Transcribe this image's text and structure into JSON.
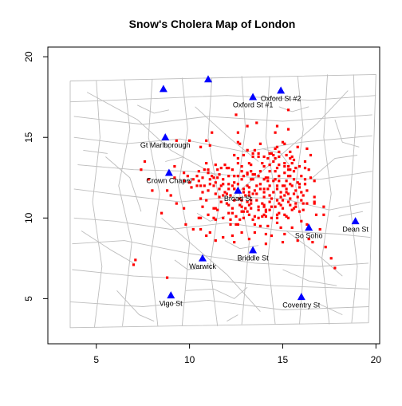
{
  "chart_data": {
    "type": "scatter",
    "title": "Snow's Cholera Map of London",
    "xlabel": "",
    "ylabel": "",
    "xlim": [
      2.4,
      20.2
    ],
    "ylim": [
      2.2,
      20.6
    ],
    "xticks": [
      5,
      10,
      15,
      20
    ],
    "yticks": [
      5,
      10,
      15,
      20
    ],
    "grid": false,
    "colors": {
      "streets": "#bdbdbd",
      "deaths": "#ff0000",
      "pumps": "#0000ff",
      "frame": "#000000"
    },
    "pumps": [
      {
        "label": "Oxford St #1",
        "x": 13.4,
        "y": 17.5
      },
      {
        "label": "Oxford St #2",
        "x": 14.9,
        "y": 17.9
      },
      {
        "label": "Gt Marlborough",
        "x": 8.7,
        "y": 15.0
      },
      {
        "label": "Crown Chapel",
        "x": 8.9,
        "y": 12.8
      },
      {
        "label": "Broad St",
        "x": 12.6,
        "y": 11.7
      },
      {
        "label": "So Soho",
        "x": 16.4,
        "y": 9.4
      },
      {
        "label": "Dean St",
        "x": 18.9,
        "y": 9.8
      },
      {
        "label": "Briddle St",
        "x": 13.4,
        "y": 8.0
      },
      {
        "label": "Warwick",
        "x": 10.7,
        "y": 7.5
      },
      {
        "label": "Vigo St",
        "x": 9.0,
        "y": 5.2
      },
      {
        "label": "Coventry St",
        "x": 16.0,
        "y": 5.1
      },
      {
        "label": "",
        "x": 8.6,
        "y": 18.0
      },
      {
        "label": "",
        "x": 11.0,
        "y": 18.6
      }
    ],
    "deaths": [
      [
        13.6,
        11.1
      ],
      [
        9.9,
        12.6
      ],
      [
        14.7,
        10.2
      ],
      [
        15.2,
        10.1
      ],
      [
        13.7,
        10.7
      ],
      [
        15.3,
        10.0
      ],
      [
        15.0,
        12.0
      ],
      [
        12.6,
        12.1
      ],
      [
        14.9,
        10.8
      ],
      [
        14.2,
        12.5
      ],
      [
        13.1,
        12.8
      ],
      [
        12.7,
        14.6
      ],
      [
        11.8,
        10.0
      ],
      [
        14.6,
        10.7
      ],
      [
        12.7,
        9.9
      ],
      [
        10.8,
        13.0
      ],
      [
        15.4,
        12.1
      ],
      [
        13.8,
        11.8
      ],
      [
        14.0,
        10.2
      ],
      [
        14.9,
        11.3
      ],
      [
        13.5,
        12.7
      ],
      [
        15.0,
        14.7
      ],
      [
        15.3,
        13.2
      ],
      [
        15.6,
        10.6
      ],
      [
        11.8,
        12.1
      ],
      [
        14.6,
        13.7
      ],
      [
        15.4,
        11.2
      ],
      [
        11.0,
        13.0
      ],
      [
        16.7,
        11.0
      ],
      [
        9.2,
        13.2
      ],
      [
        14.1,
        10.5
      ],
      [
        12.2,
        11.4
      ],
      [
        11.6,
        11.3
      ],
      [
        16.7,
        11.3
      ],
      [
        13.5,
        10.1
      ],
      [
        15.1,
        10.2
      ],
      [
        14.0,
        11.6
      ],
      [
        10.4,
        12.6
      ],
      [
        14.2,
        12.3
      ],
      [
        14.0,
        10.7
      ],
      [
        11.3,
        10.0
      ],
      [
        15.9,
        12.1
      ],
      [
        12.3,
        12.0
      ],
      [
        10.6,
        14.4
      ],
      [
        12.9,
        10.4
      ],
      [
        11.3,
        10.6
      ],
      [
        16.7,
        12.3
      ],
      [
        14.1,
        12.5
      ],
      [
        15.3,
        11.0
      ],
      [
        14.0,
        11.3
      ],
      [
        12.8,
        10.4
      ],
      [
        15.2,
        11.8
      ],
      [
        10.9,
        11.1
      ],
      [
        16.0,
        11.1
      ],
      [
        13.3,
        12.4
      ],
      [
        12.4,
        11.8
      ],
      [
        13.2,
        10.8
      ],
      [
        15.5,
        13.4
      ],
      [
        15.1,
        14.6
      ],
      [
        13.2,
        10.2
      ],
      [
        13.3,
        10.9
      ],
      [
        14.3,
        11.4
      ],
      [
        10.0,
        12.2
      ],
      [
        14.1,
        9.0
      ],
      [
        11.1,
        12.1
      ],
      [
        16.4,
        13.0
      ],
      [
        16.0,
        11.6
      ],
      [
        14.9,
        11.6
      ],
      [
        12.7,
        11.2
      ],
      [
        13.3,
        11.1
      ],
      [
        15.5,
        12.0
      ],
      [
        13.3,
        12.9
      ],
      [
        14.7,
        11.8
      ],
      [
        11.4,
        10.6
      ],
      [
        15.4,
        13.7
      ],
      [
        10.9,
        13.4
      ],
      [
        12.7,
        10.8
      ],
      [
        9.2,
        12.5
      ],
      [
        13.4,
        12.4
      ],
      [
        14.8,
        10.3
      ],
      [
        10.5,
        12.9
      ],
      [
        13.7,
        12.6
      ],
      [
        16.5,
        12.5
      ],
      [
        11.4,
        12.2
      ],
      [
        13.1,
        12.7
      ],
      [
        12.1,
        10.8
      ],
      [
        14.3,
        12.9
      ],
      [
        14.5,
        11.6
      ],
      [
        15.7,
        10.7
      ],
      [
        12.4,
        12.2
      ],
      [
        12.1,
        12.1
      ],
      [
        13.7,
        10.5
      ],
      [
        13.2,
        11.9
      ],
      [
        11.8,
        11.4
      ],
      [
        14.0,
        10.8
      ],
      [
        12.0,
        13.1
      ],
      [
        15.7,
        11.7
      ],
      [
        13.9,
        10.9
      ],
      [
        14.0,
        11.8
      ],
      [
        15.1,
        12.8
      ],
      [
        10.1,
        11.9
      ],
      [
        15.2,
        11.6
      ],
      [
        16.1,
        10.9
      ],
      [
        12.6,
        11.6
      ],
      [
        15.1,
        13.4
      ],
      [
        11.6,
        11.8
      ],
      [
        11.5,
        10.5
      ],
      [
        14.5,
        12.3
      ],
      [
        15.0,
        10.6
      ],
      [
        14.6,
        12.4
      ],
      [
        11.7,
        11.0
      ],
      [
        13.1,
        10.4
      ],
      [
        15.2,
        13.9
      ],
      [
        12.3,
        10.3
      ],
      [
        14.7,
        12.0
      ],
      [
        10.2,
        12.4
      ],
      [
        14.1,
        10.1
      ],
      [
        13.6,
        11.5
      ],
      [
        12.6,
        13.7
      ],
      [
        15.2,
        12.3
      ],
      [
        11.3,
        12.5
      ],
      [
        15.3,
        13.0
      ],
      [
        16.3,
        14.3
      ],
      [
        15.4,
        12.6
      ],
      [
        14.5,
        13.5
      ],
      [
        13.4,
        12.7
      ],
      [
        11.0,
        12.8
      ],
      [
        16.5,
        13.9
      ],
      [
        12.1,
        11.8
      ],
      [
        12.4,
        11.8
      ],
      [
        13.5,
        14.2
      ],
      [
        15.7,
        13.1
      ],
      [
        14.0,
        12.4
      ],
      [
        13.5,
        11.7
      ],
      [
        12.9,
        13.9
      ],
      [
        12.9,
        11.8
      ],
      [
        14.3,
        11.0
      ],
      [
        13.0,
        11.4
      ],
      [
        11.5,
        12.5
      ],
      [
        14.3,
        12.0
      ],
      [
        13.1,
        12.0
      ],
      [
        11.2,
        12.6
      ],
      [
        13.8,
        12.9
      ],
      [
        14.8,
        12.6
      ],
      [
        14.7,
        10.0
      ],
      [
        10.6,
        12.0
      ],
      [
        14.6,
        14.3
      ],
      [
        12.9,
        11.6
      ],
      [
        15.6,
        13.6
      ],
      [
        12.3,
        13.0
      ],
      [
        13.3,
        13.3
      ],
      [
        15.1,
        11.4
      ],
      [
        15.3,
        12.6
      ],
      [
        14.3,
        10.5
      ],
      [
        12.8,
        11.1
      ],
      [
        11.0,
        11.7
      ],
      [
        14.4,
        11.2
      ],
      [
        12.9,
        10.0
      ],
      [
        12.0,
        10.9
      ],
      [
        11.7,
        12.0
      ],
      [
        14.8,
        10.9
      ],
      [
        15.5,
        10.5
      ],
      [
        11.3,
        12.0
      ],
      [
        16.1,
        10.5
      ],
      [
        12.8,
        13.2
      ],
      [
        13.0,
        10.6
      ],
      [
        14.0,
        13.2
      ],
      [
        15.8,
        11.3
      ],
      [
        13.2,
        11.4
      ],
      [
        15.3,
        11.5
      ],
      [
        15.7,
        10.9
      ],
      [
        15.4,
        13.0
      ],
      [
        14.7,
        13.1
      ],
      [
        15.6,
        11.5
      ],
      [
        12.4,
        13.9
      ],
      [
        13.2,
        11.6
      ],
      [
        12.0,
        11.5
      ],
      [
        13.4,
        13.8
      ],
      [
        12.8,
        12.4
      ],
      [
        14.2,
        9.5
      ],
      [
        15.4,
        10.8
      ],
      [
        14.2,
        11.8
      ],
      [
        16.3,
        10.9
      ],
      [
        13.7,
        10.0
      ],
      [
        11.1,
        12.4
      ],
      [
        15.5,
        13.8
      ],
      [
        14.2,
        13.7
      ],
      [
        12.9,
        12.6
      ],
      [
        13.9,
        13.4
      ],
      [
        12.4,
        12.6
      ],
      [
        16.2,
        13.5
      ],
      [
        12.1,
        12.6
      ],
      [
        11.9,
        11.6
      ],
      [
        16.0,
        12.6
      ],
      [
        15.6,
        12.9
      ],
      [
        10.6,
        11.2
      ],
      [
        15.9,
        11.9
      ],
      [
        13.6,
        12.0
      ],
      [
        11.7,
        13.1
      ],
      [
        14.4,
        10.0
      ],
      [
        13.8,
        12.1
      ],
      [
        14.3,
        14.0
      ],
      [
        13.1,
        14.2
      ],
      [
        12.6,
        9.6
      ],
      [
        13.8,
        14.6
      ],
      [
        14.8,
        13.3
      ],
      [
        11.5,
        13.0
      ],
      [
        11.6,
        12.7
      ],
      [
        15.9,
        10.4
      ],
      [
        13.4,
        9.9
      ],
      [
        14.8,
        14.1
      ],
      [
        12.5,
        10.1
      ],
      [
        10.8,
        12.0
      ],
      [
        14.7,
        11.1
      ],
      [
        15.9,
        13.2
      ],
      [
        16.2,
        12.1
      ],
      [
        15.4,
        14.1
      ],
      [
        14.3,
        13.3
      ],
      [
        11.4,
        11.5
      ],
      [
        14.7,
        9.7
      ],
      [
        15.6,
        12.4
      ],
      [
        16.3,
        11.7
      ],
      [
        14.4,
        14.0
      ],
      [
        14.6,
        12.9
      ],
      [
        12.1,
        13.1
      ],
      [
        11.4,
        13.3
      ],
      [
        13.8,
        9.5
      ],
      [
        12.6,
        14.7
      ],
      [
        15.8,
        14.4
      ],
      [
        10.6,
        10.0
      ],
      [
        14.8,
        13.8
      ],
      [
        10.5,
        12.3
      ],
      [
        14.9,
        9.4
      ],
      [
        12.6,
        13.4
      ],
      [
        13.5,
        9.6
      ],
      [
        13.1,
        11.0
      ],
      [
        13.7,
        13.8
      ],
      [
        16.8,
        10.2
      ],
      [
        13.9,
        10.1
      ],
      [
        14.0,
        13.8
      ],
      [
        15.1,
        13.2
      ],
      [
        11.9,
        13.3
      ],
      [
        14.1,
        10.4
      ],
      [
        13.2,
        13.4
      ],
      [
        12.8,
        10.7
      ],
      [
        13.3,
        10.6
      ],
      [
        12.2,
        9.6
      ],
      [
        12.1,
        10.3
      ],
      [
        9.7,
        12.8
      ],
      [
        13.7,
        14.0
      ],
      [
        15.0,
        11.1
      ],
      [
        12.5,
        9.6
      ],
      [
        16.2,
        12.4
      ],
      [
        14.5,
        13.9
      ],
      [
        15.1,
        12.0
      ],
      [
        14.4,
        10.7
      ],
      [
        12.4,
        11.1
      ],
      [
        15.8,
        12.2
      ],
      [
        14.7,
        14.4
      ],
      [
        12.2,
        9.9
      ],
      [
        10.7,
        12.5
      ],
      [
        10.7,
        11.6
      ],
      [
        12.8,
        12.9
      ],
      [
        9.7,
        12.3
      ],
      [
        11.8,
        12.4
      ],
      [
        12.6,
        12.6
      ],
      [
        10.4,
        12.0
      ],
      [
        16.2,
        13.1
      ],
      [
        16.7,
        10.9
      ],
      [
        13.4,
        11.5
      ],
      [
        13.5,
        9.1
      ],
      [
        13.4,
        14.0
      ],
      [
        14.8,
        12.3
      ],
      [
        10.5,
        10.0
      ],
      [
        13.1,
        14.2
      ],
      [
        16.1,
        11.4
      ],
      [
        11.4,
        9.9
      ],
      [
        11.0,
        10.2
      ],
      [
        12.3,
        10.6
      ],
      [
        10.9,
        8.9
      ],
      [
        11.4,
        8.6
      ],
      [
        12.3,
        8.9
      ],
      [
        10.6,
        9.3
      ],
      [
        12.8,
        9.1
      ],
      [
        14.4,
        8.9
      ],
      [
        15.0,
        8.5
      ],
      [
        14.1,
        8.4
      ],
      [
        15.8,
        8.6
      ],
      [
        16.6,
        8.5
      ],
      [
        17.3,
        8.2
      ],
      [
        17.0,
        9.3
      ],
      [
        15.5,
        9.4
      ],
      [
        16.4,
        8.7
      ],
      [
        13.2,
        8.7
      ],
      [
        11.8,
        8.8
      ],
      [
        9.8,
        9.6
      ],
      [
        10.2,
        9.3
      ],
      [
        16.3,
        9.6
      ],
      [
        16.0,
        9.8
      ],
      [
        17.2,
        10.2
      ],
      [
        17.2,
        10.7
      ],
      [
        12.4,
        8.5
      ],
      [
        15.1,
        9.0
      ],
      [
        11.1,
        9.1
      ],
      [
        10.7,
        10.7
      ],
      [
        9.7,
        10.6
      ],
      [
        9.3,
        10.9
      ],
      [
        14.6,
        15.3
      ],
      [
        13.6,
        15.9
      ],
      [
        12.6,
        15.3
      ],
      [
        15.3,
        15.5
      ],
      [
        15.3,
        16.7
      ],
      [
        12.5,
        16.4
      ],
      [
        14.7,
        15.7
      ],
      [
        13.1,
        15.7
      ],
      [
        11.2,
        15.3
      ],
      [
        10.9,
        14.8
      ],
      [
        11.1,
        14.5
      ],
      [
        10.0,
        14.8
      ],
      [
        9.3,
        14.8
      ],
      [
        7.6,
        13.5
      ],
      [
        7.4,
        13.0
      ],
      [
        7.8,
        12.4
      ],
      [
        8.0,
        11.7
      ],
      [
        8.5,
        10.3
      ],
      [
        9.0,
        11.4
      ],
      [
        8.8,
        11.7
      ],
      [
        7.0,
        7.1
      ],
      [
        7.1,
        7.4
      ],
      [
        17.8,
        6.9
      ],
      [
        8.8,
        6.3
      ],
      [
        17.6,
        7.5
      ]
    ]
  }
}
